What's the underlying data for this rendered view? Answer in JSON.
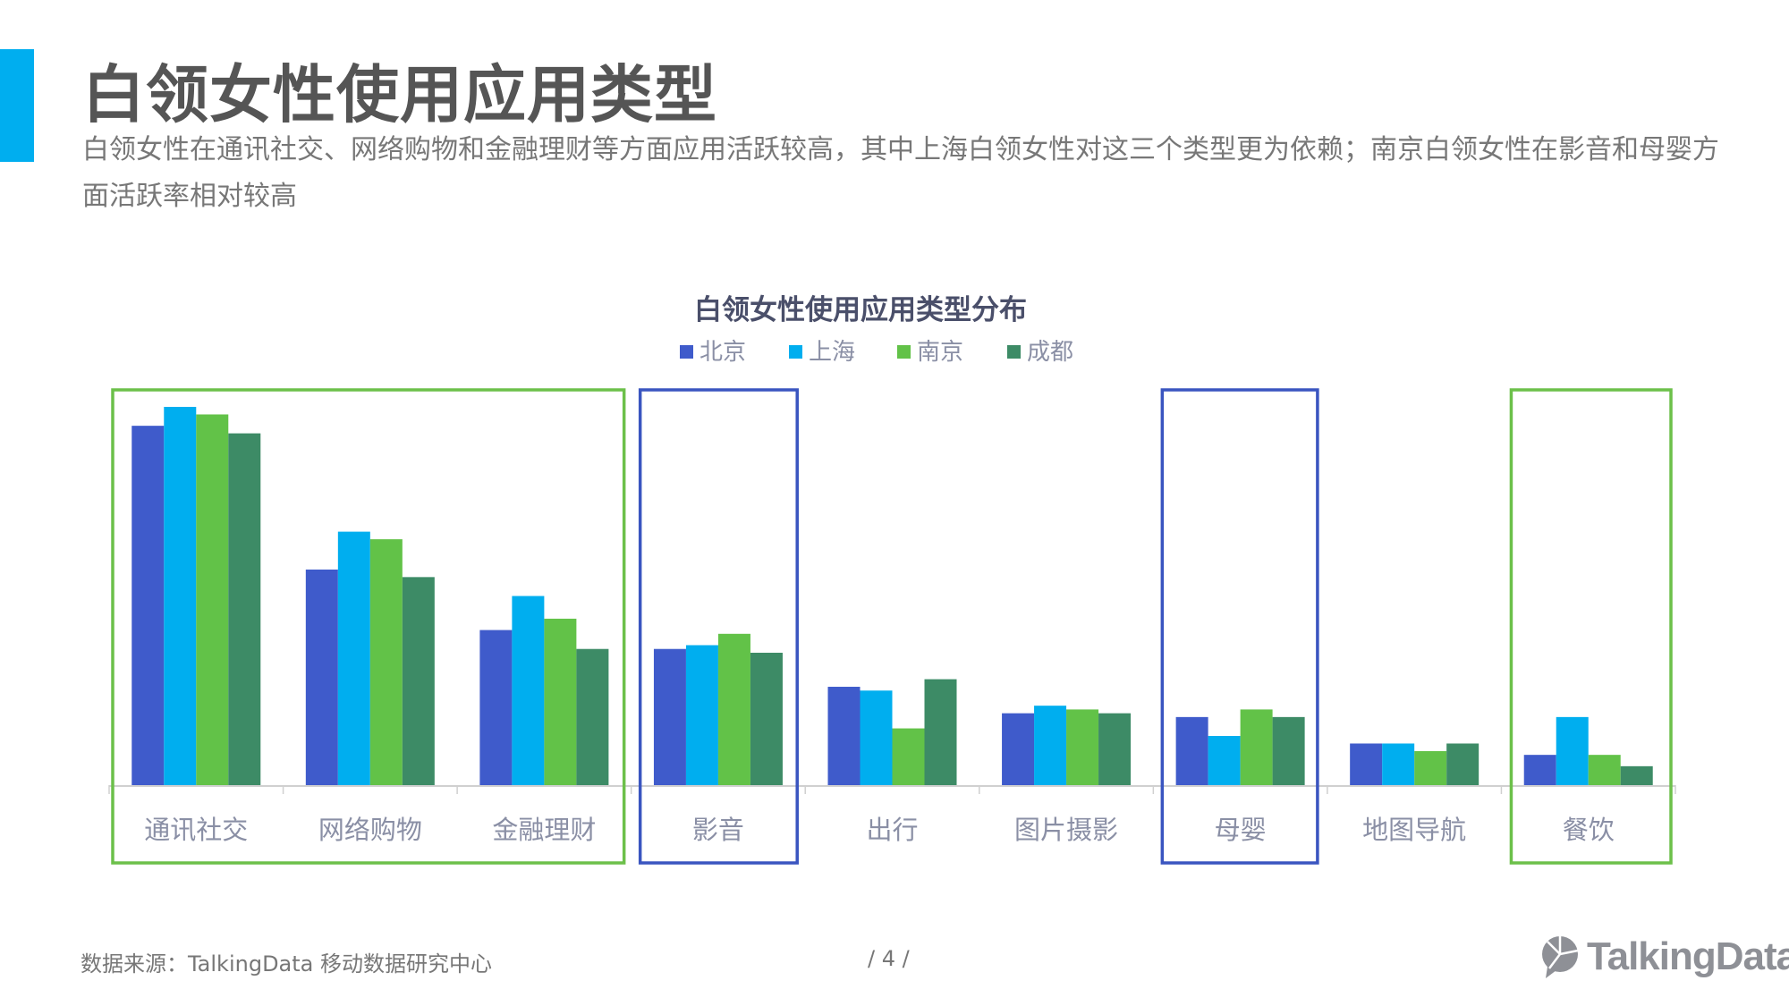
{
  "header": {
    "title": "白领女性使用应用类型",
    "subtitle": "白领女性在通讯社交、网络购物和金融理财等方面应用活跃较高，其中上海白领女性对这三个类型更为依赖；南京白领女性在影音和母婴方面活跃率相对较高",
    "accent_color": "#00aeef"
  },
  "chart_data": {
    "type": "bar",
    "title": "白领女性使用应用类型分布",
    "categories": [
      "通讯社交",
      "网络购物",
      "金融理财",
      "影音",
      "出行",
      "图片摄影",
      "母婴",
      "地图导航",
      "餐饮"
    ],
    "series": [
      {
        "name": "北京",
        "color": "#3f5bcb",
        "values": [
          95,
          57,
          41,
          36,
          26,
          19,
          18,
          11,
          8
        ]
      },
      {
        "name": "上海",
        "color": "#00aeef",
        "values": [
          100,
          67,
          50,
          37,
          25,
          21,
          13,
          11,
          18
        ]
      },
      {
        "name": "南京",
        "color": "#62c248",
        "values": [
          98,
          65,
          44,
          40,
          15,
          20,
          20,
          9,
          8
        ]
      },
      {
        "name": "成都",
        "color": "#3d8b66",
        "values": [
          93,
          55,
          36,
          35,
          28,
          19,
          18,
          11,
          5
        ]
      }
    ],
    "ylim": [
      0,
      100
    ],
    "grid": false,
    "legend": "top-center",
    "highlight_boxes": [
      {
        "categories": [
          "通讯社交",
          "网络购物",
          "金融理财"
        ],
        "color": "#6cc04a"
      },
      {
        "categories": [
          "影音"
        ],
        "color": "#3a55c0"
      },
      {
        "categories": [
          "母婴"
        ],
        "color": "#3a55c0"
      },
      {
        "categories": [
          "餐饮"
        ],
        "color": "#6cc04a"
      }
    ]
  },
  "footer": {
    "source": "数据来源：TalkingData 移动数据研究中心",
    "page": "/ 4 /",
    "logo_text": "TalkingData"
  }
}
